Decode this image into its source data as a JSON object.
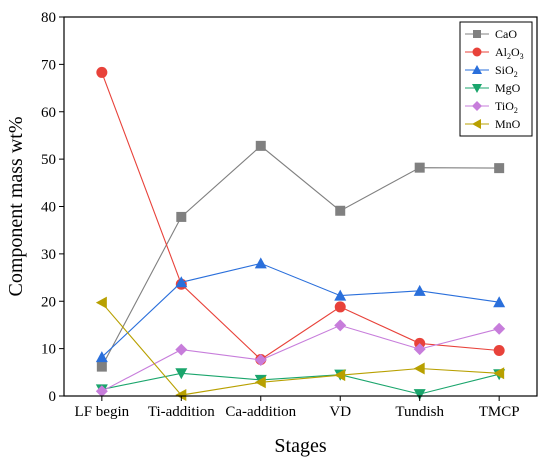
{
  "chart_data": {
    "type": "line",
    "title": "",
    "xlabel": "Stages",
    "ylabel": "Component mass wt%",
    "categories": [
      "LF begin",
      "Ti-addition",
      "Ca-addition",
      "VD",
      "Tundish",
      "TMCP"
    ],
    "ylim": [
      0,
      80
    ],
    "yticks": [
      "0",
      "10",
      "20",
      "30",
      "40",
      "50",
      "60",
      "70",
      "80"
    ],
    "grid": false,
    "legend_position": "top-right",
    "series": [
      {
        "name": "CaO",
        "legend_main": "CaO",
        "legend_sub": "",
        "color": "#808080",
        "marker": "square",
        "values": [
          6.2,
          37.8,
          52.8,
          39.1,
          48.2,
          48.1
        ]
      },
      {
        "name": "Al2O3",
        "legend_main": "Al",
        "legend_sub": "2",
        "legend_main2": "O",
        "legend_sub2": "3",
        "color": "#e8423a",
        "marker": "circle",
        "values": [
          68.3,
          23.6,
          7.7,
          18.8,
          11.1,
          9.6
        ]
      },
      {
        "name": "SiO2",
        "legend_main": "SiO",
        "legend_sub": "2",
        "color": "#2a6fdb",
        "marker": "triangle-up",
        "values": [
          8.2,
          24.0,
          28.0,
          21.2,
          22.2,
          19.8
        ]
      },
      {
        "name": "MgO",
        "legend_main": "MgO",
        "legend_sub": "",
        "color": "#1aa56c",
        "marker": "triangle-down",
        "values": [
          1.4,
          4.8,
          3.4,
          4.5,
          0.4,
          4.6
        ]
      },
      {
        "name": "TiO2",
        "legend_main": "TiO",
        "legend_sub": "2",
        "color": "#c77ddb",
        "marker": "diamond",
        "values": [
          1.0,
          9.8,
          7.6,
          14.9,
          9.9,
          14.2
        ]
      },
      {
        "name": "MnO",
        "legend_main": "MnO",
        "legend_sub": "",
        "color": "#b8a000",
        "marker": "triangle-left",
        "values": [
          19.7,
          0.2,
          2.9,
          4.4,
          5.8,
          4.8
        ]
      }
    ]
  }
}
